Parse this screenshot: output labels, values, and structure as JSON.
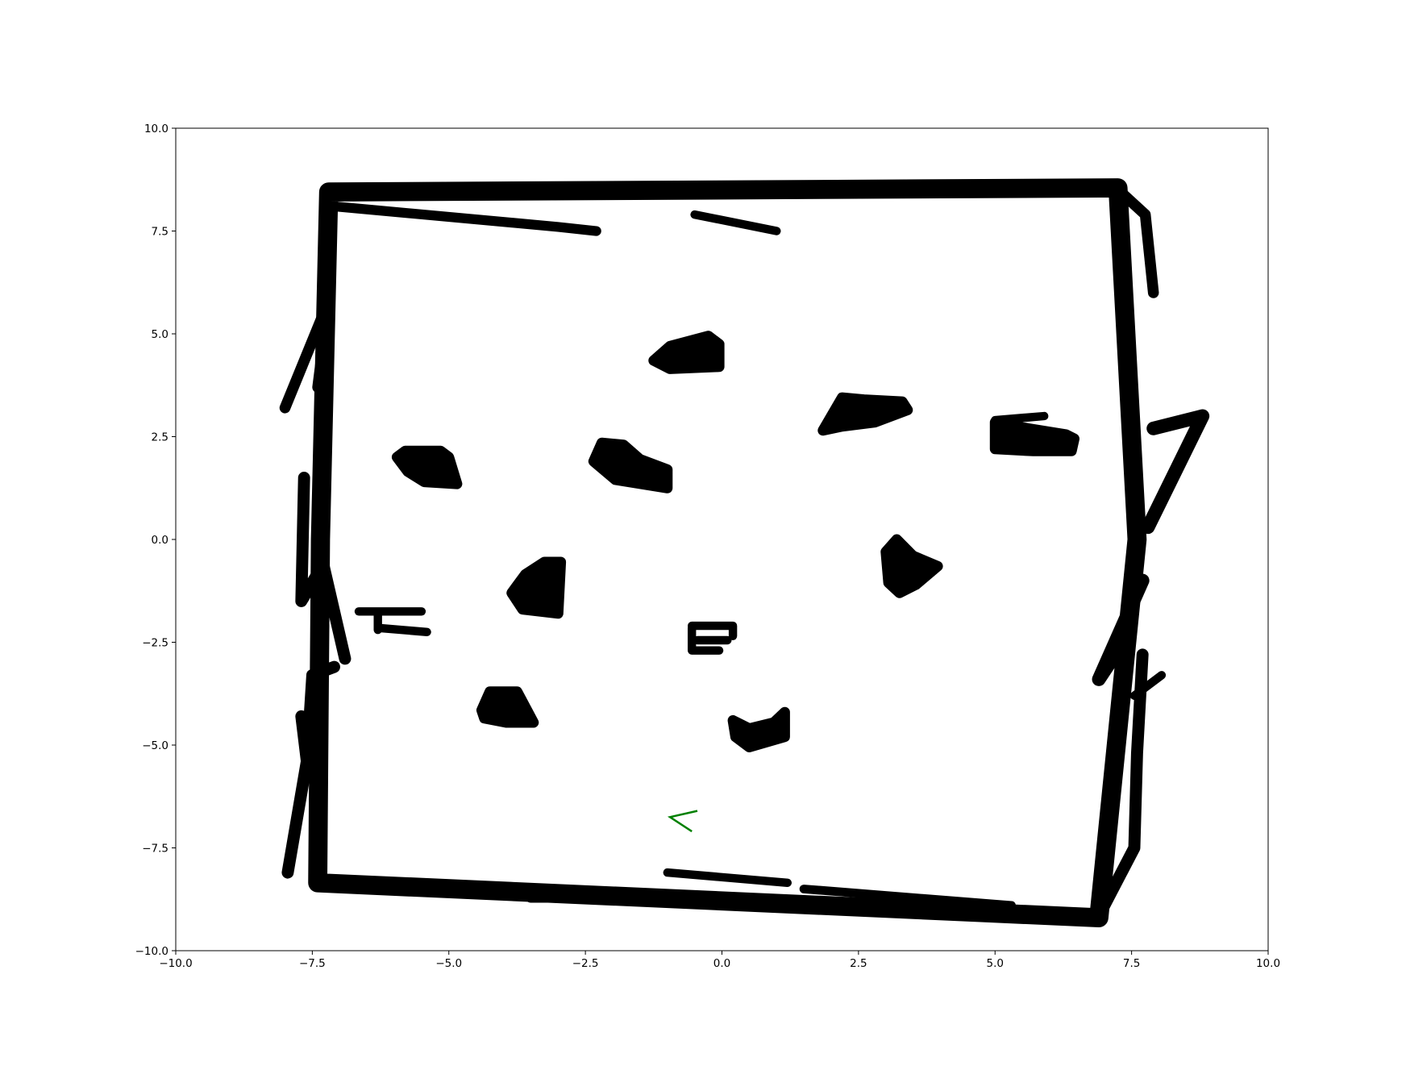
{
  "chart_data": {
    "type": "scatter",
    "title": "",
    "xlabel": "",
    "ylabel": "",
    "xlim": [
      -10,
      10
    ],
    "ylim": [
      -10,
      10
    ],
    "x_ticks": [
      -10,
      -7.5,
      -5,
      -2.5,
      0,
      2.5,
      5,
      7.5,
      10
    ],
    "y_ticks": [
      -10,
      -7.5,
      -5,
      -2.5,
      0,
      2.5,
      5,
      7.5,
      10
    ],
    "x_tick_labels": [
      "−10.0",
      "−7.5",
      "−5.0",
      "−2.5",
      "0.0",
      "2.5",
      "5.0",
      "7.5",
      "10.0"
    ],
    "y_tick_labels": [
      "−10.0",
      "−7.5",
      "−5.0",
      "−2.5",
      "0.0",
      "2.5",
      "5.0",
      "7.5",
      "10.0"
    ],
    "grid": false,
    "legend": "none",
    "point_color": "#000000",
    "pose_color": "#008000",
    "series": [
      {
        "kind": "points-outline",
        "closed": true,
        "thickness": 0.35,
        "points": [
          [
            -7.2,
            8.45
          ],
          [
            7.25,
            8.55
          ],
          [
            7.6,
            0.0
          ],
          [
            6.9,
            -9.2
          ],
          [
            -7.4,
            -8.35
          ],
          [
            -7.35,
            0.0
          ]
        ]
      },
      {
        "kind": "points-stroke",
        "thickness": 0.18,
        "points": [
          [
            -7.1,
            8.1
          ],
          [
            -3.0,
            7.6
          ],
          [
            -2.3,
            7.5
          ]
        ]
      },
      {
        "kind": "points-stroke",
        "thickness": 0.14,
        "points": [
          [
            -0.5,
            7.9
          ],
          [
            1.0,
            7.5
          ]
        ]
      },
      {
        "kind": "points-stroke",
        "thickness": 0.2,
        "points": [
          [
            -3.5,
            -8.7
          ],
          [
            -1.5,
            -8.7
          ]
        ]
      },
      {
        "kind": "points-stroke",
        "thickness": 0.16,
        "points": [
          [
            1.5,
            -8.5
          ],
          [
            5.3,
            -8.9
          ]
        ]
      },
      {
        "kind": "points-stroke",
        "thickness": 0.15,
        "points": [
          [
            -1.0,
            -8.1
          ],
          [
            1.2,
            -8.35
          ]
        ]
      },
      {
        "kind": "points-stroke",
        "thickness": 0.2,
        "points": [
          [
            -8.0,
            3.2
          ],
          [
            -7.2,
            5.8
          ],
          [
            -7.4,
            3.7
          ]
        ]
      },
      {
        "kind": "points-stroke",
        "thickness": 0.22,
        "points": [
          [
            -7.65,
            1.5
          ],
          [
            -7.7,
            -1.5
          ],
          [
            -7.3,
            -0.6
          ],
          [
            -6.9,
            -2.9
          ]
        ]
      },
      {
        "kind": "points-stroke",
        "thickness": 0.22,
        "points": [
          [
            -7.7,
            -4.3
          ],
          [
            -7.6,
            -5.4
          ],
          [
            -7.5,
            -3.3
          ],
          [
            -7.1,
            -3.1
          ]
        ]
      },
      {
        "kind": "points-stroke",
        "thickness": 0.22,
        "points": [
          [
            -7.95,
            -8.1
          ],
          [
            -7.55,
            -5.0
          ]
        ]
      },
      {
        "kind": "points-stroke",
        "thickness": 0.2,
        "points": [
          [
            7.9,
            6.0
          ],
          [
            7.75,
            7.9
          ],
          [
            7.3,
            8.45
          ]
        ]
      },
      {
        "kind": "points-stroke",
        "thickness": 0.25,
        "points": [
          [
            7.8,
            0.3
          ],
          [
            8.8,
            3.0
          ],
          [
            7.9,
            2.7
          ]
        ]
      },
      {
        "kind": "points-stroke",
        "thickness": 0.25,
        "points": [
          [
            7.7,
            -1.0
          ],
          [
            6.9,
            -3.4
          ],
          [
            7.3,
            -2.6
          ]
        ]
      },
      {
        "kind": "points-stroke",
        "thickness": 0.22,
        "points": [
          [
            7.7,
            -2.8
          ],
          [
            7.6,
            -5.2
          ],
          [
            7.55,
            -7.5
          ],
          [
            7.0,
            -8.9
          ]
        ]
      },
      {
        "kind": "points-stroke",
        "thickness": 0.14,
        "points": [
          [
            7.55,
            -3.8
          ],
          [
            8.05,
            -3.3
          ]
        ]
      },
      {
        "kind": "points-blob",
        "points": [
          [
            -1.25,
            4.35
          ],
          [
            -0.95,
            4.7
          ],
          [
            -0.25,
            4.95
          ],
          [
            -0.05,
            4.75
          ],
          [
            -0.05,
            4.2
          ],
          [
            -0.95,
            4.15
          ]
        ]
      },
      {
        "kind": "points-blob",
        "points": [
          [
            1.85,
            2.65
          ],
          [
            2.2,
            3.45
          ],
          [
            2.6,
            3.4
          ],
          [
            3.3,
            3.35
          ],
          [
            3.4,
            3.15
          ],
          [
            2.8,
            2.85
          ],
          [
            2.2,
            2.75
          ]
        ]
      },
      {
        "kind": "points-stroke",
        "thickness": 0.14,
        "points": [
          [
            5.0,
            2.9
          ],
          [
            5.9,
            3.0
          ]
        ]
      },
      {
        "kind": "points-blob",
        "points": [
          [
            5.0,
            2.2
          ],
          [
            5.0,
            2.85
          ],
          [
            5.6,
            2.7
          ],
          [
            6.3,
            2.55
          ],
          [
            6.45,
            2.45
          ],
          [
            6.4,
            2.15
          ],
          [
            5.7,
            2.15
          ]
        ]
      },
      {
        "kind": "points-blob",
        "points": [
          [
            -5.95,
            2.0
          ],
          [
            -5.8,
            2.15
          ],
          [
            -5.15,
            2.15
          ],
          [
            -5.0,
            2.0
          ],
          [
            -4.85,
            1.35
          ],
          [
            -5.45,
            1.4
          ],
          [
            -5.75,
            1.65
          ]
        ]
      },
      {
        "kind": "points-blob",
        "points": [
          [
            -2.35,
            1.9
          ],
          [
            -2.2,
            2.35
          ],
          [
            -1.8,
            2.3
          ],
          [
            -1.5,
            1.95
          ],
          [
            -1.0,
            1.7
          ],
          [
            -1.0,
            1.25
          ],
          [
            -1.95,
            1.45
          ]
        ]
      },
      {
        "kind": "points-blob",
        "points": [
          [
            3.05,
            -1.05
          ],
          [
            3.0,
            -0.3
          ],
          [
            3.2,
            0.0
          ],
          [
            3.5,
            -0.4
          ],
          [
            3.95,
            -0.65
          ],
          [
            3.55,
            -1.1
          ],
          [
            3.25,
            -1.3
          ]
        ]
      },
      {
        "kind": "points-blob",
        "points": [
          [
            -3.85,
            -1.3
          ],
          [
            -3.6,
            -0.85
          ],
          [
            -3.25,
            -0.55
          ],
          [
            -2.95,
            -0.55
          ],
          [
            -3.0,
            -1.8
          ],
          [
            -3.65,
            -1.7
          ]
        ]
      },
      {
        "kind": "points-stroke",
        "thickness": 0.12,
        "points": [
          [
            -6.65,
            -1.75
          ],
          [
            -5.5,
            -1.75
          ]
        ]
      },
      {
        "kind": "points-stroke",
        "thickness": 0.12,
        "points": [
          [
            -6.3,
            -2.15
          ],
          [
            -5.4,
            -2.25
          ]
        ]
      },
      {
        "kind": "points-stroke",
        "thickness": 0.12,
        "points": [
          [
            -6.3,
            -1.85
          ],
          [
            -6.3,
            -2.2
          ]
        ]
      },
      {
        "kind": "points-stroke",
        "thickness": 0.12,
        "points": [
          [
            -0.55,
            -2.1
          ],
          [
            0.2,
            -2.1
          ],
          [
            0.2,
            -2.35
          ]
        ]
      },
      {
        "kind": "points-stroke",
        "thickness": 0.12,
        "points": [
          [
            -0.55,
            -2.15
          ],
          [
            -0.55,
            -2.7
          ],
          [
            -0.05,
            -2.7
          ]
        ]
      },
      {
        "kind": "points-stroke",
        "thickness": 0.1,
        "points": [
          [
            -0.45,
            -2.45
          ],
          [
            0.1,
            -2.45
          ]
        ]
      },
      {
        "kind": "points-blob",
        "points": [
          [
            -4.4,
            -4.15
          ],
          [
            -4.25,
            -3.7
          ],
          [
            -3.75,
            -3.7
          ],
          [
            -3.45,
            -4.45
          ],
          [
            -3.95,
            -4.45
          ],
          [
            -4.35,
            -4.35
          ]
        ]
      },
      {
        "kind": "points-blob",
        "points": [
          [
            0.2,
            -4.4
          ],
          [
            0.5,
            -4.6
          ],
          [
            0.95,
            -4.45
          ],
          [
            1.15,
            -4.2
          ],
          [
            1.15,
            -4.8
          ],
          [
            0.5,
            -5.05
          ],
          [
            0.25,
            -4.8
          ]
        ]
      }
    ],
    "pose_marker": {
      "label": "robot-heading",
      "points": [
        [
          -0.45,
          -6.6
        ],
        [
          -0.95,
          -6.75
        ],
        [
          -0.55,
          -7.1
        ]
      ]
    }
  }
}
